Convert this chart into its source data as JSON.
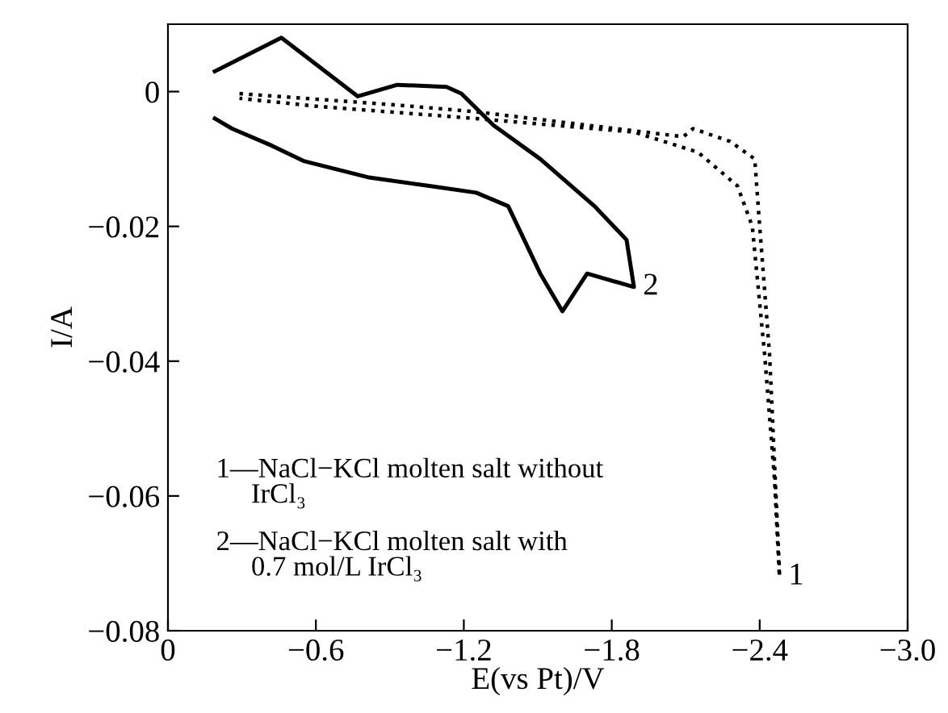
{
  "chart_data": {
    "type": "line",
    "xlabel": "E(vs Pt)/V",
    "ylabel": "I/A",
    "xlim": [
      0,
      -3.0
    ],
    "ylim": [
      -0.08,
      0.01
    ],
    "xticks": [
      0,
      {
        "value": -0.6,
        "label": "−0.6"
      },
      {
        "value": -1.2,
        "label": "−1.2"
      },
      {
        "value": -1.8,
        "label": "−1.8"
      },
      {
        "value": -2.4,
        "label": "−2.4"
      },
      {
        "value": -3.0,
        "label": "−3.0"
      }
    ],
    "yticks": [
      0,
      {
        "value": -0.02,
        "label": "−0.02"
      },
      {
        "value": -0.04,
        "label": "−0.04"
      },
      {
        "value": -0.06,
        "label": "−0.06"
      },
      {
        "value": -0.08,
        "label": "−0.08"
      }
    ],
    "grid": false,
    "legend": false,
    "marker": "none",
    "series": [
      {
        "color": "#000000",
        "line_style": "dotted",
        "x": [
          -0.29,
          -0.93,
          -1.25,
          -2.09,
          -2.13,
          -2.28,
          -2.38,
          -2.4,
          -2.44,
          -2.48,
          -2.48,
          -2.46,
          -2.42,
          -2.37,
          -2.31,
          -2.15,
          -1.89,
          -1.25,
          -0.61,
          -0.29
        ],
        "values": [
          -0.0003,
          -0.002,
          -0.003,
          -0.0067,
          -0.0055,
          -0.0074,
          -0.01,
          -0.02,
          -0.039,
          -0.071,
          -0.072,
          -0.0575,
          -0.039,
          -0.02,
          -0.014,
          -0.009,
          -0.006,
          -0.004,
          -0.0022,
          -0.001
        ]
      },
      {
        "color": "#000000",
        "line_style": "solid",
        "x": [
          -0.19,
          -0.46,
          -0.77,
          -0.93,
          -1.13,
          -1.19,
          -1.32,
          -1.51,
          -1.73,
          -1.86,
          -1.89,
          -1.7,
          -1.6,
          -1.51,
          -1.38,
          -1.25,
          -1.06,
          -0.81,
          -0.55,
          -0.42,
          -0.26,
          -0.19
        ],
        "values": [
          0.003,
          0.008,
          -0.0007,
          0.001,
          0.0007,
          -0.0003,
          -0.005,
          -0.01,
          -0.017,
          -0.022,
          -0.029,
          -0.027,
          -0.0326,
          -0.027,
          -0.017,
          -0.015,
          -0.014,
          -0.0127,
          -0.0103,
          -0.008,
          -0.0055,
          -0.004
        ]
      }
    ],
    "annotations": [
      {
        "text": "1",
        "x": -2.48,
        "y": -0.072
      },
      {
        "text": "2",
        "x": -1.89,
        "y": -0.029
      },
      "1—NaCl−KCl molten salt without\n     IrCl₃",
      "2—NaCl−KCl molten salt with\n     0.7 mol/L IrCl₃"
    ]
  }
}
